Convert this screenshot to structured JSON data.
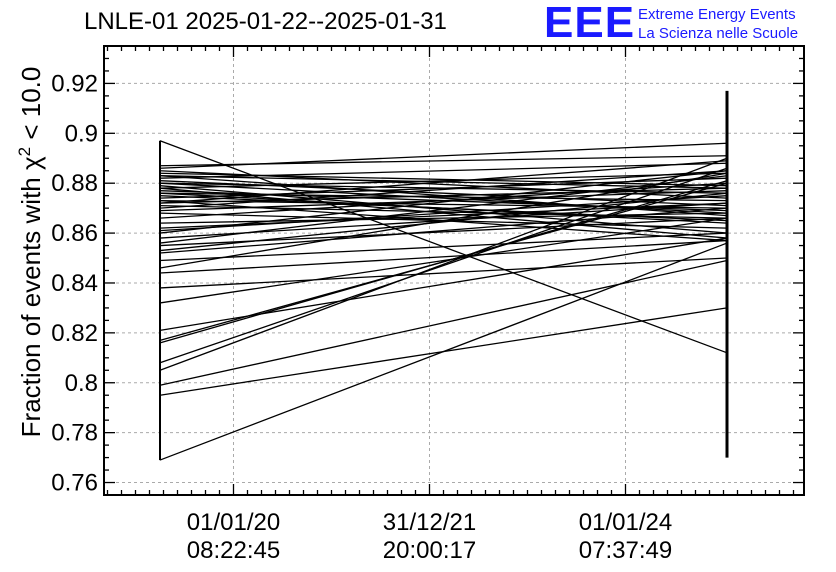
{
  "chart_data": {
    "type": "line",
    "title": "LNLE-01 2025-01-22--2025-01-31",
    "ylabel": "Fraction of events with χ² < 10.0",
    "ylabel_parts": {
      "prefix": "Fraction of events with ",
      "symbol": "χ",
      "sup": "2",
      "suffix": " < 10.0"
    },
    "xlabel": "",
    "ylim": [
      0.755,
      0.935
    ],
    "xlim": [
      0,
      1
    ],
    "grid": true,
    "line_color": "#000000",
    "y_ticks": [
      0.76,
      0.78,
      0.8,
      0.82,
      0.84,
      0.86,
      0.88,
      0.9,
      0.92
    ],
    "y_tick_labels": [
      "0.76",
      "0.78",
      "0.8",
      "0.82",
      "0.84",
      "0.86",
      "0.88",
      "0.9",
      "0.92"
    ],
    "x_ticks": [
      {
        "x": 0.185,
        "date": "01/01/20",
        "time": "08:22:45"
      },
      {
        "x": 0.465,
        "date": "31/12/21",
        "time": "20:00:17"
      },
      {
        "x": 0.745,
        "date": "01/01/24",
        "time": "07:37:49"
      }
    ],
    "x_left": 0.08,
    "x_right": 0.89,
    "segments": [
      [
        0.769,
        0.856
      ],
      [
        0.897,
        0.812
      ],
      [
        0.795,
        0.83
      ],
      [
        0.805,
        0.89
      ],
      [
        0.816,
        0.881
      ],
      [
        0.821,
        0.858
      ],
      [
        0.832,
        0.866
      ],
      [
        0.838,
        0.85
      ],
      [
        0.844,
        0.857
      ],
      [
        0.849,
        0.86
      ],
      [
        0.852,
        0.87
      ],
      [
        0.855,
        0.866
      ],
      [
        0.858,
        0.872
      ],
      [
        0.861,
        0.875
      ],
      [
        0.864,
        0.868
      ],
      [
        0.866,
        0.88
      ],
      [
        0.868,
        0.862
      ],
      [
        0.87,
        0.885
      ],
      [
        0.871,
        0.866
      ],
      [
        0.872,
        0.878
      ],
      [
        0.873,
        0.87
      ],
      [
        0.874,
        0.882
      ],
      [
        0.875,
        0.865
      ],
      [
        0.876,
        0.873
      ],
      [
        0.877,
        0.869
      ],
      [
        0.878,
        0.884
      ],
      [
        0.879,
        0.86
      ],
      [
        0.88,
        0.876
      ],
      [
        0.881,
        0.871
      ],
      [
        0.882,
        0.888
      ],
      [
        0.883,
        0.867
      ],
      [
        0.884,
        0.879
      ],
      [
        0.885,
        0.874
      ],
      [
        0.886,
        0.896
      ],
      [
        0.887,
        0.891
      ],
      [
        0.878,
        0.858
      ],
      [
        0.799,
        0.849
      ],
      [
        0.817,
        0.88
      ],
      [
        0.808,
        0.886
      ],
      [
        0.856,
        0.883
      ],
      [
        0.873,
        0.857
      ],
      [
        0.86,
        0.885
      ],
      [
        0.869,
        0.877
      ],
      [
        0.862,
        0.872
      ],
      [
        0.883,
        0.878
      ],
      [
        0.876,
        0.864
      ],
      [
        0.88,
        0.868
      ],
      [
        0.846,
        0.884
      ],
      [
        0.853,
        0.876
      ],
      [
        0.872,
        0.889
      ]
    ],
    "left_span": [
      0.769,
      0.897
    ],
    "right_span": [
      0.77,
      0.917
    ]
  }
}
